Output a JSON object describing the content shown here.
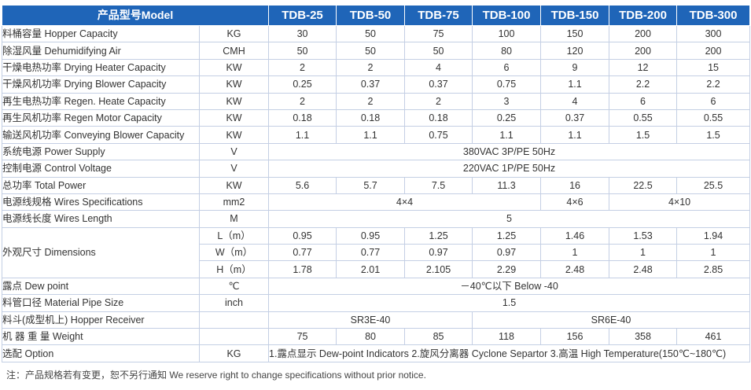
{
  "header": {
    "model_label": "产品型号Model",
    "models": [
      "TDB-25",
      "TDB-50",
      "TDB-75",
      "TDB-100",
      "TDB-150",
      "TDB-200",
      "TDB-300"
    ]
  },
  "rows": {
    "hopper": {
      "label": "料桶容量 Hopper Capacity",
      "unit": "KG",
      "values": [
        "30",
        "50",
        "75",
        "100",
        "150",
        "200",
        "300"
      ]
    },
    "dehum": {
      "label": "除湿风量 Dehumidifying Air",
      "unit": "CMH",
      "values": [
        "50",
        "50",
        "50",
        "80",
        "120",
        "200",
        "200"
      ]
    },
    "heater": {
      "label": "干燥电热功率 Drying Heater Capacity",
      "unit": "KW",
      "values": [
        "2",
        "2",
        "4",
        "6",
        "9",
        "12",
        "15"
      ]
    },
    "blower": {
      "label": "干燥风机功率 Drying Blower Capacity",
      "unit": "KW",
      "values": [
        "0.25",
        "0.37",
        "0.37",
        "0.75",
        "1.1",
        "2.2",
        "2.2"
      ]
    },
    "regen_heat": {
      "label": "再生电热功率 Regen. Heate Capacity",
      "unit": "KW",
      "values": [
        "2",
        "2",
        "2",
        "3",
        "4",
        "6",
        "6"
      ]
    },
    "regen_motor": {
      "label": "再生风机功率 Regen Motor Capacity",
      "unit": "KW",
      "values": [
        "0.18",
        "0.18",
        "0.18",
        "0.25",
        "0.37",
        "0.55",
        "0.55"
      ]
    },
    "conveying": {
      "label": "输送风机功率 Conveying Blower Capacity",
      "unit": "KW",
      "values": [
        "1.1",
        "1.1",
        "0.75",
        "1.1",
        "1.1",
        "1.5",
        "1.5"
      ]
    },
    "power_supply": {
      "label": "系统电源 Power Supply",
      "unit": "V",
      "value": "380VAC 3P/PE 50Hz"
    },
    "control_voltage": {
      "label": "控制电源 Control Voltage",
      "unit": "V",
      "value": "220VAC 1P/PE 50Hz"
    },
    "total_power": {
      "label": "总功率 Total Power",
      "unit": "KW",
      "values": [
        "5.6",
        "5.7",
        "7.5",
        "11.3",
        "16",
        "22.5",
        "25.5"
      ]
    },
    "wires_spec": {
      "label": "电源线规格 Wires Specifications",
      "unit": "mm2",
      "values": [
        "4×4",
        "4×6",
        "4×10"
      ]
    },
    "wires_length": {
      "label": "电源线长度 Wires Length",
      "unit": "M",
      "value": "5"
    },
    "dimensions": {
      "label": "外观尺寸 Dimensions",
      "L": {
        "unit": "L（m）",
        "values": [
          "0.95",
          "0.95",
          "1.25",
          "1.25",
          "1.46",
          "1.53",
          "1.94"
        ]
      },
      "W": {
        "unit": "W（m）",
        "values": [
          "0.77",
          "0.77",
          "0.97",
          "0.97",
          "1",
          "1",
          "1"
        ]
      },
      "H": {
        "unit": "H（m）",
        "values": [
          "1.78",
          "2.01",
          "2.105",
          "2.29",
          "2.48",
          "2.48",
          "2.85"
        ]
      }
    },
    "dew_point": {
      "label": "露点 Dew point",
      "unit": "℃",
      "value": "－40℃以下 Below -40"
    },
    "pipe_size": {
      "label": "料管口径 Material Pipe Size",
      "unit": "inch",
      "value": "1.5"
    },
    "hopper_receiver": {
      "label": "料斗(成型机上) Hopper Receiver",
      "unit": "",
      "values": [
        "SR3E-40",
        "SR6E-40"
      ]
    },
    "weight": {
      "label": "机 器 重 量 Weight",
      "unit": "",
      "values": [
        "75",
        "80",
        "85",
        "118",
        "156",
        "358",
        "461"
      ]
    },
    "option": {
      "label": "选配 Option",
      "unit": "KG",
      "value": "1.露点显示 Dew-point Indicators  2.旋风分离器 Cyclone Separtor  3.高温 High Temperature(150℃~180℃)"
    }
  },
  "footnote": "注：产品规格若有变更，恕不另行通知   We reserve right to change specifications without prior notice."
}
